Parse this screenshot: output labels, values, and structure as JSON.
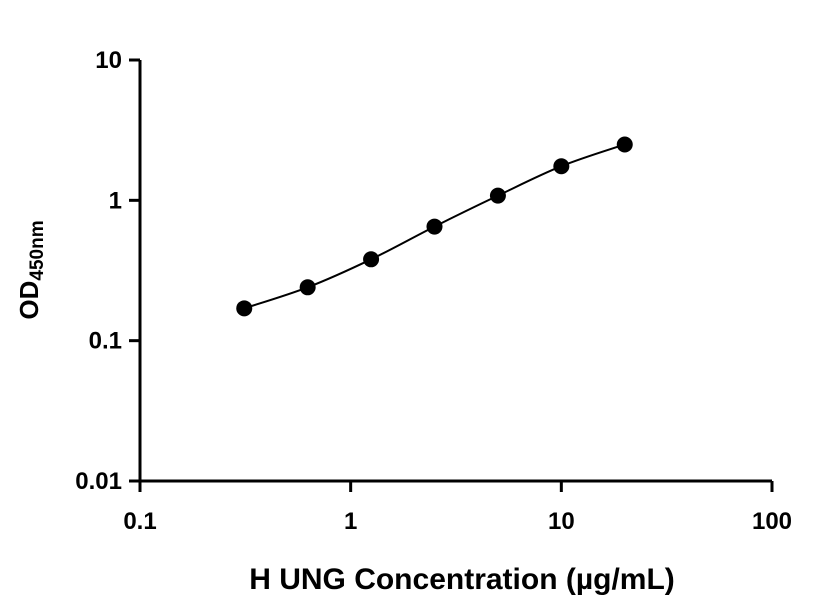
{
  "chart_data": {
    "type": "scatter",
    "xscale": "log",
    "yscale": "log",
    "xlim": [
      0.1,
      100
    ],
    "ylim": [
      0.01,
      10
    ],
    "xticks": [
      "0.1",
      "1",
      "10",
      "100"
    ],
    "yticks": [
      "0.01",
      "0.1",
      "1",
      "10"
    ],
    "xlabel": "H UNG Concentration (µg/mL)",
    "ylabel": "OD",
    "ylabel_subscript": "450nm",
    "grid": false,
    "colors": {
      "points": "#000000",
      "axes": "#000000"
    },
    "series": [
      {
        "x": [
          0.3125,
          0.625,
          1.25,
          2.5,
          5,
          10,
          20
        ],
        "y": [
          0.17,
          0.24,
          0.38,
          0.65,
          1.08,
          1.75,
          2.5
        ],
        "fit": "4PL curve"
      }
    ]
  }
}
